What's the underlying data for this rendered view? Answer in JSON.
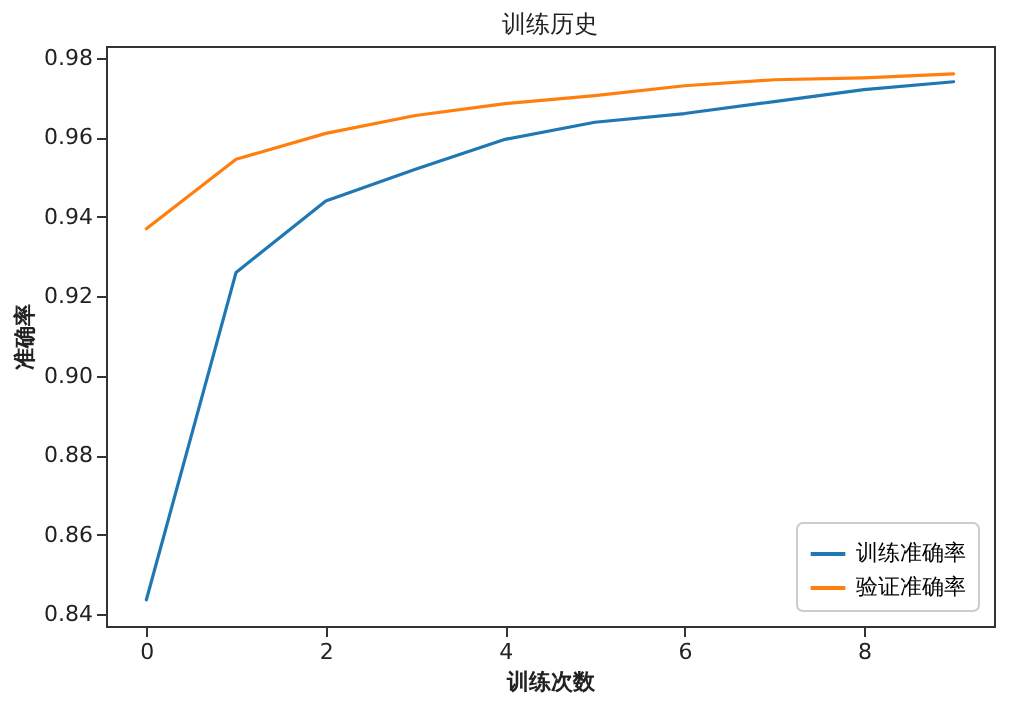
{
  "chart_data": {
    "type": "line",
    "title": "训练历史",
    "xlabel": "训练次数",
    "ylabel": "准确率",
    "x": [
      0,
      1,
      2,
      3,
      4,
      5,
      6,
      7,
      8,
      9
    ],
    "series": [
      {
        "name": "训练准确率",
        "color": "#1f77b4",
        "values": [
          0.8436,
          0.926,
          0.944,
          0.952,
          0.9595,
          0.9638,
          0.966,
          0.969,
          0.972,
          0.974
        ]
      },
      {
        "name": "验证准确率",
        "color": "#ff7f0e",
        "values": [
          0.937,
          0.9545,
          0.961,
          0.9655,
          0.9685,
          0.9705,
          0.973,
          0.9745,
          0.975,
          0.976
        ]
      }
    ],
    "xlim": [
      -0.45,
      9.45
    ],
    "xticks": [
      0,
      2,
      4,
      6,
      8
    ],
    "ylim": [
      0.837,
      0.983
    ],
    "yticks": [
      0.84,
      0.86,
      0.88,
      {
        "value": 0.9,
        "label": "0.90"
      },
      0.92,
      0.94,
      0.96,
      0.98
    ],
    "grid": false,
    "legend": "bottom right",
    "marker": "none",
    "line_style": "solid"
  }
}
